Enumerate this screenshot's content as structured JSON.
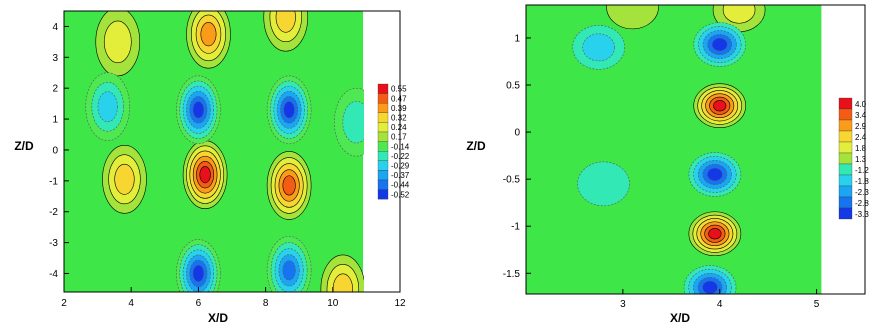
{
  "chart_data": [
    {
      "type": "contour",
      "xlabel": "X/D",
      "ylabel": "Z/D",
      "xlim": [
        2,
        12
      ],
      "ylim": [
        -4.6,
        4.5
      ],
      "x_ticks": [
        "2",
        "4",
        "6",
        "8",
        "10",
        "12"
      ],
      "y_ticks": [
        "-4",
        "-3",
        "-2",
        "-1",
        "0",
        "1",
        "2",
        "3",
        "4"
      ],
      "data_extent_x": [
        2,
        10.9
      ],
      "legend": {
        "position": "right",
        "levels": [
          "0.55",
          "0.47",
          "0.39",
          "0.32",
          "0.24",
          "0.17",
          "-0.14",
          "-0.22",
          "-0.29",
          "-0.37",
          "-0.44",
          "-0.52"
        ],
        "colors": [
          "#e8101a",
          "#f45c14",
          "#fa9c1a",
          "#f8d632",
          "#e2ee3a",
          "#a4e23c",
          "#4ee852",
          "#32e8b4",
          "#28d2ec",
          "#1aa6f2",
          "#1674f0",
          "#1438e8"
        ]
      },
      "features": [
        {
          "x": 6.2,
          "y": -0.8,
          "value": 0.55
        },
        {
          "x": 8.7,
          "y": -1.15,
          "value": 0.47
        },
        {
          "x": 3.8,
          "y": -0.95,
          "value": 0.32
        },
        {
          "x": 6.3,
          "y": 3.75,
          "value": 0.39
        },
        {
          "x": 8.6,
          "y": 4.3,
          "value": 0.32
        },
        {
          "x": 3.6,
          "y": 3.5,
          "value": 0.24
        },
        {
          "x": 10.3,
          "y": -4.5,
          "value": 0.32
        },
        {
          "x": 6.0,
          "y": 1.3,
          "value": -0.52
        },
        {
          "x": 8.7,
          "y": 1.3,
          "value": -0.52
        },
        {
          "x": 3.3,
          "y": 1.4,
          "value": -0.29
        },
        {
          "x": 6.0,
          "y": -4.0,
          "value": -0.52
        },
        {
          "x": 8.7,
          "y": -3.9,
          "value": -0.44
        },
        {
          "x": 10.7,
          "y": 0.9,
          "value": -0.22
        }
      ]
    },
    {
      "type": "contour",
      "xlabel": "X/D",
      "ylabel": "Z/D",
      "xlim": [
        2.0,
        5.5
      ],
      "ylim": [
        -1.72,
        1.35
      ],
      "x_ticks": [
        "3",
        "4",
        "5"
      ],
      "y_ticks": [
        "-1.5",
        "-1",
        "-0.5",
        "0",
        "0.5",
        "1"
      ],
      "data_extent_x": [
        2.0,
        5.05
      ],
      "legend": {
        "position": "right",
        "levels": [
          "4.0",
          "3.4",
          "2.9",
          "2.4",
          "1.8",
          "1.3",
          "-1.2",
          "-1.8",
          "-2.3",
          "-2.8",
          "-3.3"
        ],
        "colors": [
          "#e8101a",
          "#f45c14",
          "#fa9c1a",
          "#f8d632",
          "#e2ee3a",
          "#a4e23c",
          "#32e8b4",
          "#28d2ec",
          "#1aa6f2",
          "#1674f0",
          "#1438e8"
        ]
      },
      "features": [
        {
          "x": 4.0,
          "y": 0.28,
          "value": 4.0
        },
        {
          "x": 3.95,
          "y": -1.08,
          "value": 4.0
        },
        {
          "x": 4.2,
          "y": 1.3,
          "value": 1.8
        },
        {
          "x": 3.1,
          "y": 1.33,
          "value": 1.3
        },
        {
          "x": 4.0,
          "y": 0.93,
          "value": -3.3
        },
        {
          "x": 3.95,
          "y": -0.45,
          "value": -3.3
        },
        {
          "x": 3.9,
          "y": -1.65,
          "value": -3.3
        },
        {
          "x": 2.75,
          "y": 0.9,
          "value": -1.8
        },
        {
          "x": 2.8,
          "y": -0.55,
          "value": -1.2
        }
      ]
    }
  ]
}
